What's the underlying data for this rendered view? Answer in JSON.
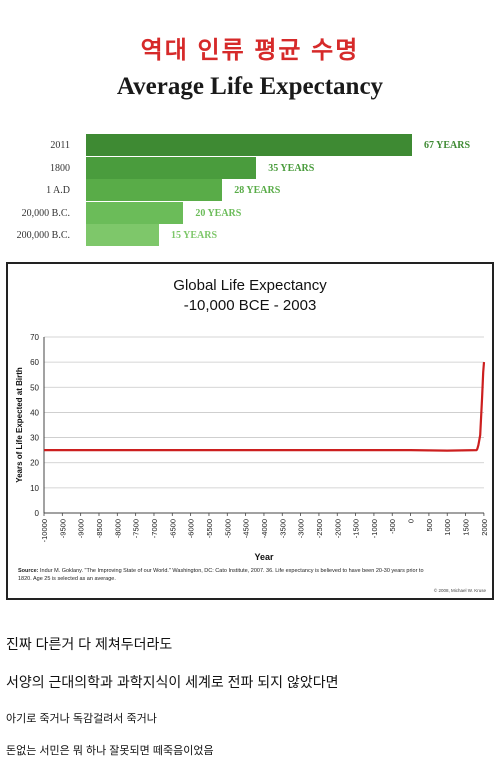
{
  "header": {
    "title_ko": "역대 인류 평균 수명",
    "title_en": "Average Life Expectancy"
  },
  "colors": {
    "title_ko": "#d62a2a",
    "line": "#cc1f1f",
    "bar_dark": "#3e8a33",
    "bar_light": "#7ec76a"
  },
  "chart_data": [
    {
      "type": "bar",
      "orientation": "horizontal",
      "title": "Average Life Expectancy",
      "categories": [
        "2011",
        "1800",
        "1 A.D",
        "20,000 B.C.",
        "200,000 B.C."
      ],
      "values": [
        67,
        35,
        28,
        20,
        15
      ],
      "value_labels": [
        "67 YEARS",
        "35 YEARS",
        "28 YEARS",
        "20 YEARS",
        "15 YEARS"
      ],
      "unit": "YEARS"
    },
    {
      "type": "line",
      "title": "Global Life Expectancy",
      "subtitle": "-10,000 BCE - 2003",
      "xlabel": "Year",
      "ylabel": "Years of Life Expected at Birth",
      "xlim": [
        -10000,
        2003
      ],
      "ylim": [
        0,
        70
      ],
      "grid": true,
      "x_ticks": [
        "-10000",
        "-9500",
        "-9000",
        "-8500",
        "-8000",
        "-7500",
        "-7000",
        "-6500",
        "-6000",
        "-5500",
        "-5000",
        "-4500",
        "-4000",
        "-3500",
        "-3000",
        "-2500",
        "-2000",
        "-1500",
        "-1000",
        "-500",
        "0",
        "500",
        "1000",
        "1500",
        "2000"
      ],
      "y_ticks": [
        "0",
        "10",
        "20",
        "30",
        "40",
        "50",
        "60",
        "70"
      ],
      "series": [
        {
          "x": [
            -10000,
            0,
            1000,
            1800,
            1820,
            1850,
            1900,
            1950,
            1980,
            2003
          ],
          "y": [
            25,
            25,
            24.8,
            25,
            25.5,
            27,
            31,
            46,
            56,
            60
          ]
        }
      ],
      "source": "Source: Indur M. Goklany. \"The Improving State of our World.\" Washington, DC: Cato Institute, 2007. 36. Life expectancy is believed to have been 20-30 years prior to 1820. Age 25 is selected as an average.",
      "credit": "© 2008, Michael W. Kruse"
    }
  ],
  "text": {
    "line1": "진짜 다른거 다 제쳐두더라도",
    "line2": "서양의 근대의학과 과학지식이 세계로 전파 되지 않았다면",
    "line3": "아기로 죽거나 독감걸려서 죽거나",
    "line4": "돈없는 서민은 뭐 하나 잘못되면 떼죽음이었음"
  }
}
